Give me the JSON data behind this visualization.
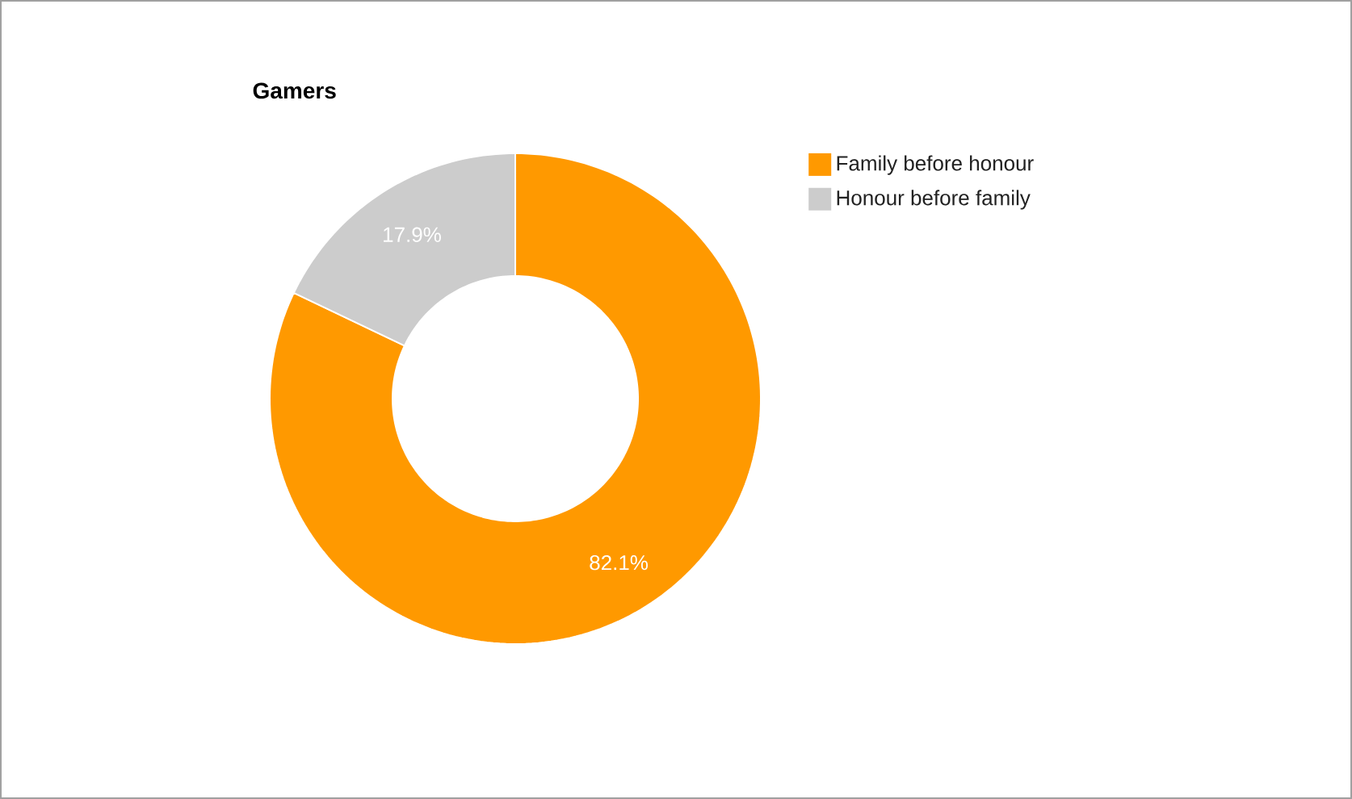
{
  "chart_data": {
    "type": "donut",
    "title": "Gamers",
    "categories": [
      "Family before honour",
      "Honour before family"
    ],
    "values": [
      82.1,
      17.9
    ],
    "colors": [
      "#ff9900",
      "#cccccc"
    ],
    "value_labels": [
      "82.1%",
      "17.9%"
    ],
    "legend": "top right"
  }
}
